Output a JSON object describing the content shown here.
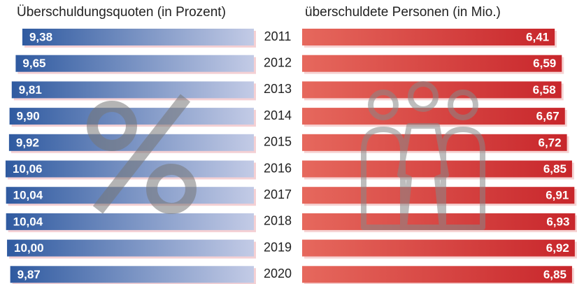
{
  "chart_data": {
    "type": "bar",
    "orientation": "horizontal",
    "categories": [
      "2011",
      "2012",
      "2013",
      "2014",
      "2015",
      "2016",
      "2017",
      "2018",
      "2019",
      "2020"
    ],
    "series": [
      {
        "name": "Überschuldungsquoten (in Prozent)",
        "color": "#2f5aa0",
        "axis": "x",
        "values": [
          9.38,
          9.65,
          9.81,
          9.9,
          9.92,
          10.06,
          10.04,
          10.04,
          10.0,
          9.87
        ],
        "value_labels": [
          "9,38",
          "9,65",
          "9,81",
          "9,90",
          "9,92",
          "10,06",
          "10,04",
          "10,04",
          "10,00",
          "9,87"
        ]
      },
      {
        "name": "überschuldete Personen (in Mio.)",
        "color": "#c8262b",
        "axis": "x2",
        "values": [
          6.41,
          6.59,
          6.58,
          6.67,
          6.72,
          6.85,
          6.91,
          6.93,
          6.92,
          6.85
        ],
        "value_labels": [
          "6,41",
          "6,59",
          "6,58",
          "6,67",
          "6,72",
          "6,85",
          "6,91",
          "6,93",
          "6,92",
          "6,85"
        ]
      }
    ],
    "xlim": [
      0,
      10.2
    ],
    "x2lim": [
      0,
      7.1
    ]
  }
}
